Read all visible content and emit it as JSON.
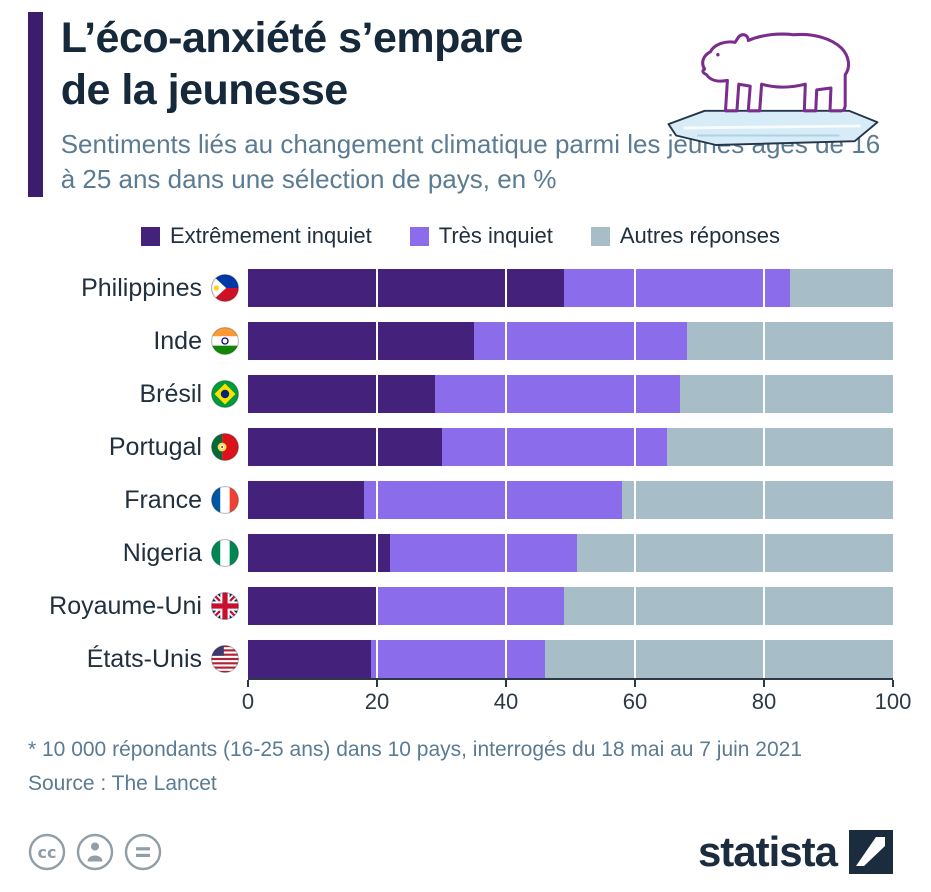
{
  "header": {
    "title_line1": "L’éco-anxiété s’empare",
    "title_line2": "de la jeunesse",
    "subtitle": "Sentiments liés au changement climatique parmi les jeunes âgés de 16 à 25 ans dans une sélection de pays, en %"
  },
  "chart_data": {
    "type": "bar",
    "orientation": "horizontal",
    "stacked": true,
    "xlim": [
      0,
      100
    ],
    "x_ticks": [
      0,
      20,
      40,
      60,
      80,
      100
    ],
    "grid": true,
    "legend_position": "top",
    "legend": [
      {
        "label": "Extrêmement inquiet",
        "color": "#44217b"
      },
      {
        "label": "Très inquiet",
        "color": "#8b6ceb"
      },
      {
        "label": "Autres réponses",
        "color": "#a7bdc7"
      }
    ],
    "rows": [
      {
        "country": "Philippines",
        "flag": "ph",
        "extremely": 49,
        "very": 35,
        "others": 16
      },
      {
        "country": "Inde",
        "flag": "in",
        "extremely": 35,
        "very": 33,
        "others": 32
      },
      {
        "country": "Brésil",
        "flag": "br",
        "extremely": 29,
        "very": 38,
        "others": 33
      },
      {
        "country": "Portugal",
        "flag": "pt",
        "extremely": 30,
        "very": 35,
        "others": 35
      },
      {
        "country": "France",
        "flag": "fr",
        "extremely": 18,
        "very": 40,
        "others": 42
      },
      {
        "country": "Nigeria",
        "flag": "ng",
        "extremely": 22,
        "very": 29,
        "others": 49
      },
      {
        "country": "Royaume-Uni",
        "flag": "gb",
        "extremely": 20,
        "very": 29,
        "others": 51
      },
      {
        "country": "États-Unis",
        "flag": "us",
        "extremely": 19,
        "very": 27,
        "others": 54
      }
    ]
  },
  "footer": {
    "footnote": "* 10 000 répondants (16-25 ans) dans 10 pays, interrogés du 18 mai au 7 juin 2021",
    "source": "Source : The Lancet"
  },
  "branding": {
    "logo_text": "statista"
  },
  "colors": {
    "accent_bar": "#3b1d6b",
    "title": "#15293a",
    "subtitle": "#5b7b93",
    "bear_outline": "#7b2d8e",
    "ice": "#d7ecf7"
  }
}
